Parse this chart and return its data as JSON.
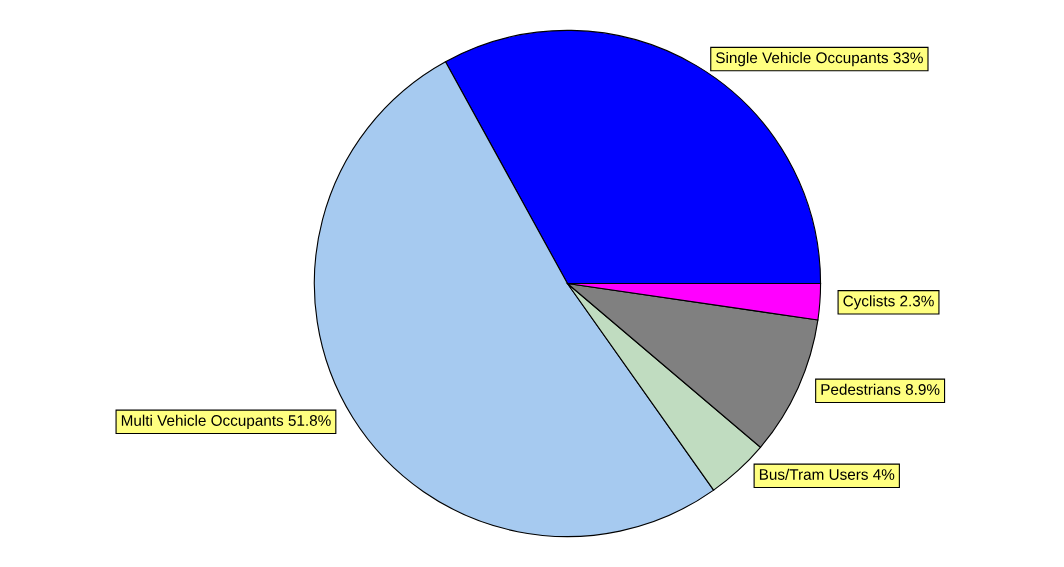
{
  "chart_data": {
    "type": "pie",
    "categories": [
      "Single Vehicle Occupants",
      "Multi Vehicle Occupants",
      "Bus/Tram Users",
      "Pedestrians",
      "Cyclists"
    ],
    "values": [
      33,
      51.8,
      4,
      8.9,
      2.3
    ],
    "value_labels": [
      "33%",
      "51.8%",
      "4%",
      "8.9%",
      "2.3%"
    ],
    "colors": [
      "#0000ff",
      "#a6caf0",
      "#c0dcc0",
      "#808080",
      "#ff00ff"
    ],
    "legend": false
  }
}
